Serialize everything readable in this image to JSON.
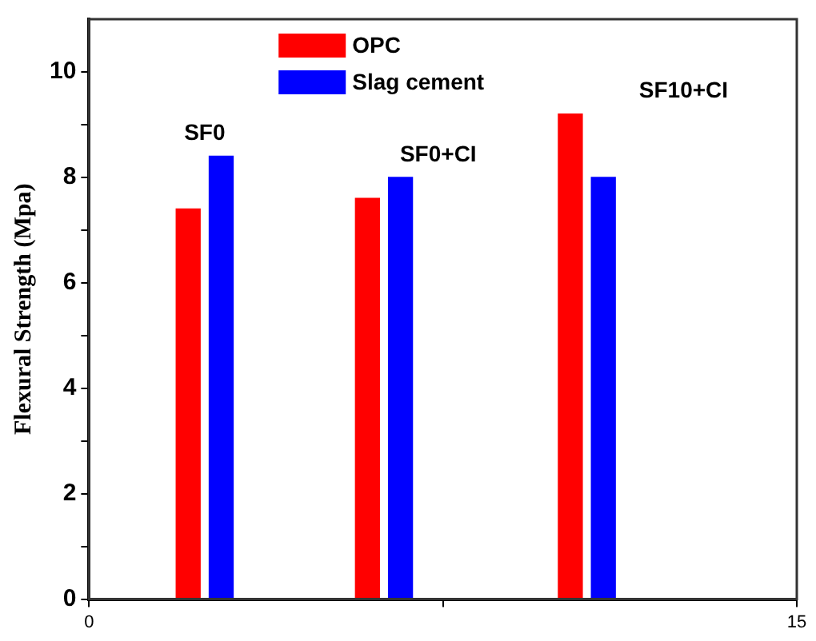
{
  "chart_data": {
    "type": "bar",
    "ylabel": "Flexural Strength (Mpa)",
    "series": [
      {
        "name": "OPC",
        "color": "#ff0000",
        "x": [
          2.1,
          5.9,
          10.2
        ],
        "values": [
          7.4,
          7.6,
          9.2
        ]
      },
      {
        "name": "Slag cement",
        "color": "#0000ff",
        "x": [
          2.8,
          6.6,
          10.9
        ],
        "values": [
          8.4,
          8.0,
          8.0
        ]
      }
    ],
    "xlim": [
      0,
      15
    ],
    "xticks": [
      0,
      {
        "value": 7.5,
        "label": null
      },
      15
    ],
    "ylim": [
      0,
      11
    ],
    "yticks": [
      0,
      {
        "value": 1,
        "label": null
      },
      2,
      {
        "value": 3,
        "label": null
      },
      4,
      {
        "value": 5,
        "label": null
      },
      6,
      {
        "value": 7,
        "label": null
      },
      8,
      {
        "value": 9,
        "label": null
      },
      10
    ],
    "grid": false,
    "legend": "top",
    "annotations": [
      "SF0",
      "SF0+CI",
      "SF10+CI"
    ]
  }
}
